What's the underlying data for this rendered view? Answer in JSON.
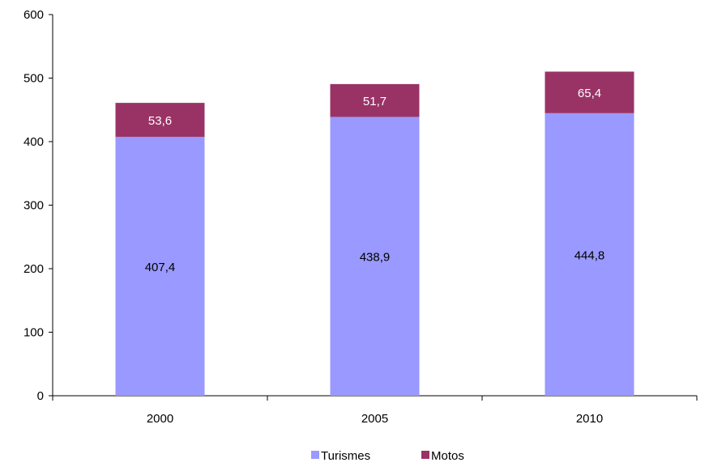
{
  "chart_data": {
    "type": "bar",
    "stacked": true,
    "categories": [
      "2000",
      "2005",
      "2010"
    ],
    "series": [
      {
        "name": "Turismes",
        "values": [
          407.4,
          438.9,
          444.8
        ],
        "color": "#9999ff",
        "labels": [
          "407,4",
          "438,9",
          "444,8"
        ]
      },
      {
        "name": "Motos",
        "values": [
          53.6,
          51.7,
          65.4
        ],
        "color": "#993366",
        "labels": [
          "53,6",
          "51,7",
          "65,4"
        ]
      }
    ],
    "ylim": [
      0,
      600
    ],
    "yticks": [
      "0",
      "100",
      "200",
      "300",
      "400",
      "500",
      "600"
    ],
    "grid": false,
    "legend_position": "bottom",
    "label_colors": {
      "Turismes": "#000000",
      "Motos": "#ffffff"
    }
  }
}
